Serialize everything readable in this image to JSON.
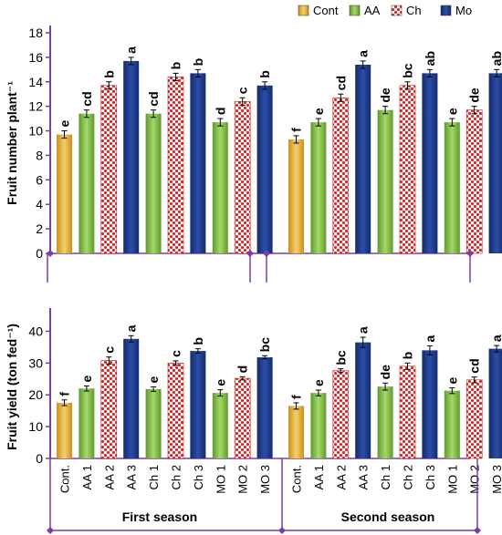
{
  "legend": [
    {
      "key": "Cont",
      "label": "Cont"
    },
    {
      "key": "AA",
      "label": "AA"
    },
    {
      "key": "Ch",
      "label": "Ch"
    },
    {
      "key": "Mo",
      "label": "Mo"
    }
  ],
  "colors": {
    "Cont": "#e8b84a",
    "AA": "#8bc34a",
    "Ch": "#d62828",
    "Mo": "#1f3a8a",
    "axis": "#7b3fa0"
  },
  "categories": [
    "Cont.",
    "AA 1",
    "AA 2",
    "AA 3",
    "Ch 1",
    "Ch 2",
    "Ch 3",
    "MO 1",
    "MO 2",
    "MO 3"
  ],
  "category_groups": [
    "Cont",
    "AA",
    "Ch",
    "Mo",
    "AA",
    "Ch",
    "Mo",
    "AA",
    "Ch",
    "Mo"
  ],
  "seasons": [
    "First season",
    "Second season"
  ],
  "chart_data": [
    {
      "type": "bar",
      "ylabel": "Fruit number plant⁻¹",
      "ylim": [
        0,
        18
      ],
      "yticks": [
        0,
        2,
        4,
        6,
        8,
        10,
        12,
        14,
        16,
        18
      ],
      "seasons": [
        {
          "name": "First season",
          "values": [
            9.7,
            11.4,
            13.7,
            15.7,
            11.4,
            14.4,
            14.7,
            10.7,
            12.4,
            13.7
          ],
          "errors": [
            0.3,
            0.3,
            0.3,
            0.3,
            0.3,
            0.3,
            0.3,
            0.3,
            0.3,
            0.3
          ],
          "letters": [
            "e",
            "cd",
            "b",
            "a",
            "cd",
            "b",
            "b",
            "d",
            "c",
            "b"
          ]
        },
        {
          "name": "Second season",
          "values": [
            9.3,
            10.7,
            12.7,
            15.4,
            11.7,
            13.7,
            14.7,
            10.7,
            11.7,
            14.7
          ],
          "errors": [
            0.3,
            0.3,
            0.3,
            0.3,
            0.3,
            0.3,
            0.3,
            0.3,
            0.3,
            0.3
          ],
          "letters": [
            "f",
            "e",
            "cd",
            "a",
            "de",
            "bc",
            "ab",
            "e",
            "de",
            "ab"
          ]
        }
      ]
    },
    {
      "type": "bar",
      "ylabel": "Fruit yield (ton fed⁻¹)",
      "ylim": [
        0,
        45
      ],
      "yticks": [
        0,
        10,
        20,
        30,
        40
      ],
      "seasons": [
        {
          "name": "First season",
          "values": [
            17.5,
            22.0,
            30.8,
            37.6,
            21.8,
            30.0,
            33.8,
            20.6,
            25.2,
            31.8
          ],
          "errors": [
            0.9,
            0.8,
            1.1,
            1.0,
            0.7,
            0.7,
            0.7,
            1.0,
            0.5,
            0.5
          ],
          "letters": [
            "f",
            "e",
            "c",
            "a",
            "e",
            "c",
            "b",
            "e",
            "d",
            "bc"
          ]
        },
        {
          "name": "Second season",
          "values": [
            16.5,
            20.6,
            27.6,
            36.5,
            22.6,
            29.0,
            34.0,
            21.3,
            24.7,
            34.5
          ],
          "errors": [
            1.0,
            0.9,
            0.6,
            1.6,
            1.1,
            1.0,
            1.4,
            0.9,
            0.9,
            1.0
          ],
          "letters": [
            "f",
            "e",
            "bc",
            "a",
            "de",
            "b",
            "a",
            "e",
            "cd",
            "a"
          ]
        }
      ]
    }
  ]
}
